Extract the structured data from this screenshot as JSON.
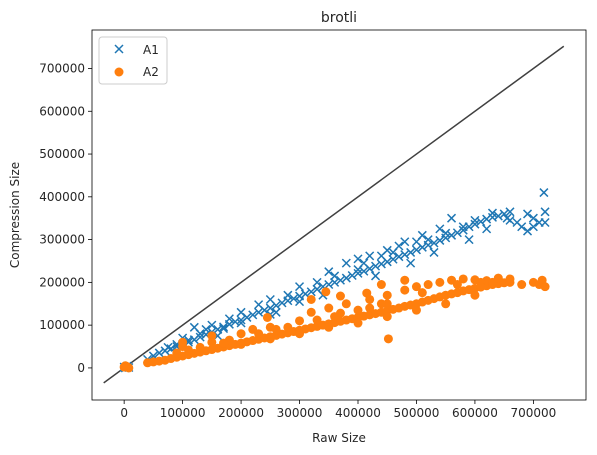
{
  "chart_data": {
    "type": "scatter",
    "title": "brotli",
    "xlabel": "Raw Size",
    "ylabel": "Compression Size",
    "xlim": [
      -55000,
      790000
    ],
    "ylim": [
      -75000,
      790000
    ],
    "xticks": [
      0,
      100000,
      200000,
      300000,
      400000,
      500000,
      600000,
      700000
    ],
    "yticks": [
      0,
      100000,
      200000,
      300000,
      400000,
      500000,
      600000,
      700000
    ],
    "xtick_labels": [
      "0",
      "100000",
      "200000",
      "300000",
      "400000",
      "500000",
      "600000",
      "700000"
    ],
    "ytick_labels": [
      "0",
      "100000",
      "200000",
      "300000",
      "400000",
      "500000",
      "600000",
      "700000"
    ],
    "grid": false,
    "legend_position": "top-left",
    "reference_line": {
      "x": [
        -35000,
        752000
      ],
      "y": [
        -35000,
        752000
      ],
      "color": "#404040"
    },
    "series": [
      {
        "name": "A1",
        "marker": "x",
        "color": "#1f77b4",
        "points": [
          [
            0,
            2000
          ],
          [
            5000,
            4000
          ],
          [
            8000,
            1000
          ],
          [
            2000,
            0
          ],
          [
            40000,
            20000
          ],
          [
            50000,
            28000
          ],
          [
            60000,
            35000
          ],
          [
            70000,
            40000
          ],
          [
            80000,
            45000
          ],
          [
            90000,
            50000
          ],
          [
            100000,
            55000
          ],
          [
            110000,
            60000
          ],
          [
            120000,
            66000
          ],
          [
            130000,
            72000
          ],
          [
            140000,
            78000
          ],
          [
            150000,
            84000
          ],
          [
            160000,
            90000
          ],
          [
            170000,
            96000
          ],
          [
            180000,
            102000
          ],
          [
            190000,
            108000
          ],
          [
            200000,
            112000
          ],
          [
            210000,
            118000
          ],
          [
            220000,
            124000
          ],
          [
            230000,
            130000
          ],
          [
            240000,
            135000
          ],
          [
            250000,
            140000
          ],
          [
            260000,
            146000
          ],
          [
            270000,
            152000
          ],
          [
            280000,
            157000
          ],
          [
            290000,
            162000
          ],
          [
            300000,
            168000
          ],
          [
            310000,
            173000
          ],
          [
            320000,
            178000
          ],
          [
            330000,
            184000
          ],
          [
            340000,
            190000
          ],
          [
            350000,
            195000
          ],
          [
            360000,
            200000
          ],
          [
            370000,
            205000
          ],
          [
            380000,
            210000
          ],
          [
            390000,
            216000
          ],
          [
            400000,
            221000
          ],
          [
            410000,
            226000
          ],
          [
            420000,
            232000
          ],
          [
            430000,
            238000
          ],
          [
            440000,
            243000
          ],
          [
            450000,
            248000
          ],
          [
            460000,
            254000
          ],
          [
            470000,
            260000
          ],
          [
            480000,
            265000
          ],
          [
            490000,
            270000
          ],
          [
            500000,
            276000
          ],
          [
            510000,
            282000
          ],
          [
            520000,
            287000
          ],
          [
            530000,
            292000
          ],
          [
            540000,
            298000
          ],
          [
            550000,
            304000
          ],
          [
            560000,
            310000
          ],
          [
            570000,
            316000
          ],
          [
            580000,
            322000
          ],
          [
            590000,
            330000
          ],
          [
            600000,
            336000
          ],
          [
            610000,
            342000
          ],
          [
            620000,
            348000
          ],
          [
            630000,
            352000
          ],
          [
            640000,
            355000
          ],
          [
            650000,
            360000
          ],
          [
            660000,
            365000
          ],
          [
            120000,
            95000
          ],
          [
            150000,
            100000
          ],
          [
            200000,
            130000
          ],
          [
            250000,
            160000
          ],
          [
            300000,
            190000
          ],
          [
            350000,
            225000
          ],
          [
            380000,
            245000
          ],
          [
            400000,
            255000
          ],
          [
            420000,
            262000
          ],
          [
            450000,
            275000
          ],
          [
            470000,
            285000
          ],
          [
            500000,
            295000
          ],
          [
            520000,
            300000
          ],
          [
            550000,
            315000
          ],
          [
            580000,
            330000
          ],
          [
            600000,
            345000
          ],
          [
            630000,
            362000
          ],
          [
            560000,
            350000
          ],
          [
            540000,
            325000
          ],
          [
            510000,
            310000
          ],
          [
            480000,
            295000
          ],
          [
            460000,
            270000
          ],
          [
            440000,
            262000
          ],
          [
            410000,
            245000
          ],
          [
            360000,
            215000
          ],
          [
            330000,
            200000
          ],
          [
            280000,
            170000
          ],
          [
            230000,
            148000
          ],
          [
            180000,
            115000
          ],
          [
            140000,
            90000
          ],
          [
            100000,
            70000
          ],
          [
            160000,
            75000
          ],
          [
            260000,
            130000
          ],
          [
            340000,
            170000
          ],
          [
            430000,
            215000
          ],
          [
            490000,
            245000
          ],
          [
            530000,
            270000
          ],
          [
            620000,
            325000
          ],
          [
            590000,
            300000
          ],
          [
            660000,
            345000
          ],
          [
            680000,
            330000
          ],
          [
            690000,
            320000
          ],
          [
            700000,
            350000
          ],
          [
            710000,
            340000
          ],
          [
            720000,
            340000
          ],
          [
            720000,
            365000
          ],
          [
            718000,
            410000
          ],
          [
            700000,
            330000
          ],
          [
            690000,
            360000
          ],
          [
            672000,
            340000
          ],
          [
            655000,
            350000
          ],
          [
            400000,
            230000
          ],
          [
            300000,
            155000
          ],
          [
            250000,
            125000
          ],
          [
            200000,
            105000
          ],
          [
            170000,
            92000
          ],
          [
            130000,
            80000
          ],
          [
            110000,
            65000
          ],
          [
            90000,
            55000
          ],
          [
            75000,
            48000
          ]
        ]
      },
      {
        "name": "A2",
        "marker": "o",
        "color": "#ff7f0e",
        "points": [
          [
            0,
            2000
          ],
          [
            5000,
            3000
          ],
          [
            8000,
            0
          ],
          [
            2000,
            5000
          ],
          [
            40000,
            12000
          ],
          [
            50000,
            14000
          ],
          [
            60000,
            16000
          ],
          [
            70000,
            18000
          ],
          [
            80000,
            22000
          ],
          [
            90000,
            25000
          ],
          [
            100000,
            28000
          ],
          [
            110000,
            31000
          ],
          [
            120000,
            34000
          ],
          [
            130000,
            37000
          ],
          [
            140000,
            40000
          ],
          [
            150000,
            43000
          ],
          [
            160000,
            46000
          ],
          [
            170000,
            49000
          ],
          [
            180000,
            52000
          ],
          [
            190000,
            55000
          ],
          [
            200000,
            58000
          ],
          [
            210000,
            61000
          ],
          [
            220000,
            64000
          ],
          [
            230000,
            67000
          ],
          [
            240000,
            70000
          ],
          [
            250000,
            73000
          ],
          [
            260000,
            76000
          ],
          [
            270000,
            79000
          ],
          [
            280000,
            82000
          ],
          [
            290000,
            85000
          ],
          [
            300000,
            88000
          ],
          [
            310000,
            91000
          ],
          [
            320000,
            94000
          ],
          [
            330000,
            97000
          ],
          [
            340000,
            100000
          ],
          [
            350000,
            103000
          ],
          [
            360000,
            106000
          ],
          [
            370000,
            109000
          ],
          [
            380000,
            112000
          ],
          [
            390000,
            115000
          ],
          [
            400000,
            118000
          ],
          [
            410000,
            121000
          ],
          [
            420000,
            124000
          ],
          [
            430000,
            127000
          ],
          [
            440000,
            130000
          ],
          [
            450000,
            134000
          ],
          [
            460000,
            137000
          ],
          [
            470000,
            140000
          ],
          [
            480000,
            144000
          ],
          [
            490000,
            147000
          ],
          [
            500000,
            150000
          ],
          [
            510000,
            154000
          ],
          [
            520000,
            158000
          ],
          [
            530000,
            162000
          ],
          [
            540000,
            166000
          ],
          [
            550000,
            170000
          ],
          [
            560000,
            173000
          ],
          [
            570000,
            176000
          ],
          [
            580000,
            180000
          ],
          [
            590000,
            183000
          ],
          [
            600000,
            186000
          ],
          [
            610000,
            189000
          ],
          [
            620000,
            192000
          ],
          [
            630000,
            195000
          ],
          [
            640000,
            197000
          ],
          [
            650000,
            199000
          ],
          [
            660000,
            200000
          ],
          [
            100000,
            50000
          ],
          [
            150000,
            60000
          ],
          [
            200000,
            80000
          ],
          [
            250000,
            95000
          ],
          [
            300000,
            110000
          ],
          [
            320000,
            130000
          ],
          [
            350000,
            140000
          ],
          [
            380000,
            150000
          ],
          [
            420000,
            160000
          ],
          [
            450000,
            170000
          ],
          [
            480000,
            182000
          ],
          [
            500000,
            190000
          ],
          [
            520000,
            195000
          ],
          [
            540000,
            200000
          ],
          [
            560000,
            205000
          ],
          [
            580000,
            208000
          ],
          [
            600000,
            206000
          ],
          [
            620000,
            204000
          ],
          [
            640000,
            210000
          ],
          [
            660000,
            208000
          ],
          [
            480000,
            205000
          ],
          [
            450000,
            150000
          ],
          [
            420000,
            140000
          ],
          [
            400000,
            135000
          ],
          [
            370000,
            128000
          ],
          [
            330000,
            112000
          ],
          [
            280000,
            95000
          ],
          [
            230000,
            80000
          ],
          [
            180000,
            65000
          ],
          [
            130000,
            48000
          ],
          [
            90000,
            35000
          ],
          [
            110000,
            42000
          ],
          [
            170000,
            58000
          ],
          [
            260000,
            90000
          ],
          [
            360000,
            120000
          ],
          [
            440000,
            150000
          ],
          [
            510000,
            176000
          ],
          [
            570000,
            195000
          ],
          [
            610000,
            200000
          ],
          [
            100000,
            60000
          ],
          [
            150000,
            75000
          ],
          [
            220000,
            90000
          ],
          [
            245000,
            118000
          ],
          [
            320000,
            160000
          ],
          [
            345000,
            178000
          ],
          [
            370000,
            168000
          ],
          [
            440000,
            195000
          ],
          [
            415000,
            175000
          ],
          [
            610000,
            190000
          ],
          [
            630000,
            200000
          ],
          [
            700000,
            200000
          ],
          [
            710000,
            195000
          ],
          [
            715000,
            205000
          ],
          [
            720000,
            190000
          ],
          [
            680000,
            195000
          ],
          [
            452000,
            68000
          ],
          [
            200000,
            55000
          ],
          [
            250000,
            68000
          ],
          [
            300000,
            80000
          ],
          [
            350000,
            95000
          ],
          [
            400000,
            105000
          ],
          [
            450000,
            120000
          ],
          [
            500000,
            135000
          ],
          [
            550000,
            150000
          ],
          [
            600000,
            170000
          ]
        ]
      }
    ]
  }
}
